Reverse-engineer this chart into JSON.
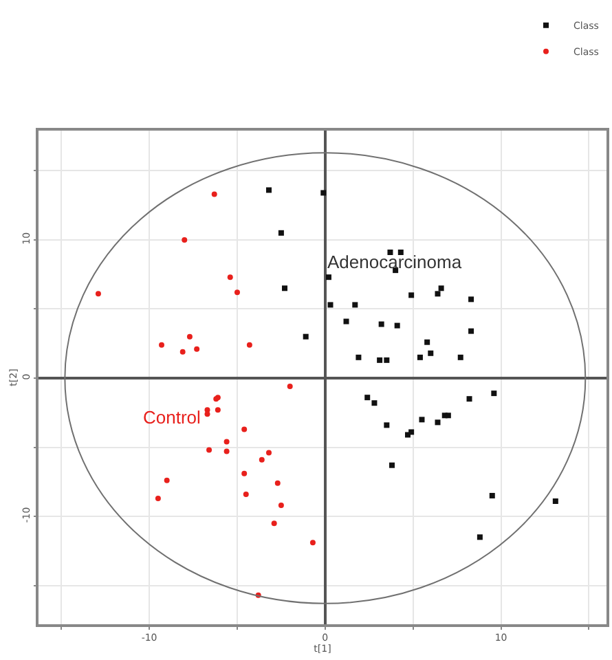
{
  "chart_data": {
    "type": "scatter",
    "xlabel": "t[1]",
    "ylabel": "t[2]",
    "xlim": [
      -16.3,
      16
    ],
    "ylim": [
      -17.8,
      17.9
    ],
    "xticks": [
      {
        "value": -15,
        "label": null
      },
      -10,
      {
        "value": -5,
        "label": null
      },
      0,
      {
        "value": 5,
        "label": null
      },
      10,
      {
        "value": 15,
        "label": null
      }
    ],
    "yticks": [
      {
        "value": -15,
        "label": null
      },
      -10,
      {
        "value": -5,
        "label": null
      },
      0,
      {
        "value": 5,
        "label": null
      },
      10,
      {
        "value": 15,
        "label": null
      }
    ],
    "grid": true,
    "legend": "top right",
    "marker": "square",
    "annotations": [
      "Adenocarcinoma",
      "Control"
    ],
    "series": [
      {
        "name": "Class",
        "color": "#111111",
        "x": [
          -3.2,
          -0.1,
          -2.5,
          -2.3,
          -1.1,
          3.7,
          4.3,
          4.0,
          0.2,
          4.9,
          6.4,
          6.6,
          8.3,
          0.3,
          1.7,
          1.2,
          3.2,
          4.1,
          8.3,
          5.8,
          6.0,
          1.9,
          3.1,
          3.5,
          5.4,
          7.7,
          9.6,
          8.2,
          2.4,
          2.8,
          3.5,
          5.5,
          6.4,
          6.8,
          7.0,
          4.7,
          4.9,
          3.8,
          9.5,
          13.1,
          8.8
        ],
        "values": [
          13.6,
          13.4,
          10.5,
          6.5,
          3.0,
          9.1,
          9.1,
          7.8,
          7.3,
          6.0,
          6.1,
          6.5,
          5.7,
          5.3,
          5.3,
          4.1,
          3.9,
          3.8,
          3.4,
          2.6,
          1.8,
          1.5,
          1.3,
          1.3,
          1.5,
          1.5,
          -1.1,
          -1.5,
          -1.4,
          -1.8,
          -3.4,
          -3.0,
          -3.2,
          -2.7,
          -2.7,
          -4.1,
          -3.9,
          -6.3,
          -8.5,
          -8.9,
          -11.5
        ]
      },
      {
        "name": "Class",
        "color": "#e8201c",
        "marker": "circle",
        "x": [
          -6.3,
          -8.0,
          -5.4,
          -5.0,
          -12.9,
          -7.7,
          -9.3,
          -8.1,
          -7.3,
          -4.3,
          -2.0,
          -6.1,
          -6.2,
          -6.7,
          -6.7,
          -6.1,
          -4.6,
          -6.6,
          -5.6,
          -5.6,
          -3.2,
          -3.6,
          -4.6,
          -2.7,
          -9.0,
          -9.5,
          -4.5,
          -2.5,
          -2.9,
          -0.7,
          -3.8
        ],
        "values": [
          13.3,
          10.0,
          7.3,
          6.2,
          6.1,
          3.0,
          2.4,
          1.9,
          2.1,
          2.4,
          -0.6,
          -1.4,
          -1.5,
          -2.3,
          -2.6,
          -2.3,
          -3.7,
          -5.2,
          -4.6,
          -5.3,
          -5.4,
          -5.9,
          -6.9,
          -7.6,
          -7.4,
          -8.7,
          -8.4,
          -9.2,
          -10.5,
          -11.9,
          -15.7
        ]
      }
    ]
  }
}
